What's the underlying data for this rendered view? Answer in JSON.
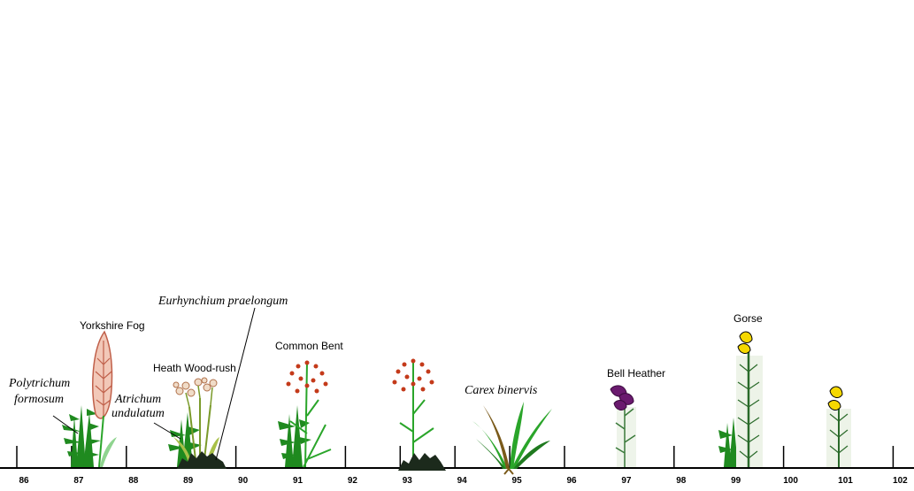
{
  "transect": {
    "ticks": [
      "86",
      "87",
      "88",
      "89",
      "90",
      "91",
      "92",
      "93",
      "94",
      "95",
      "96",
      "97",
      "98",
      "99",
      "100",
      "101",
      "102"
    ]
  },
  "species": {
    "yorkshire_fog": "Yorkshire Fog",
    "polytrichum_line1": "Polytrichum",
    "polytrichum_line2": "formosum",
    "atrichum_line1": "Atrichum",
    "atrichum_line2": "undulatum",
    "heath_wood_rush": "Heath Wood-rush",
    "eurhynchium": "Eurhynchium praelongum",
    "common_bent": "Common Bent",
    "carex": "Carex binervis",
    "bell_heather": "Bell Heather",
    "gorse": "Gorse"
  },
  "colors": {
    "moss_green": "#1f8a1f",
    "grass_green": "#2aa52a",
    "fog_pink": "#f2c8b8",
    "fog_outline": "#c0604a",
    "bent_seed": "#c43a1a",
    "heather_purple": "#6a1a6e",
    "gorse_yellow": "#f5d800",
    "dark_moss": "#1c2a1c"
  }
}
